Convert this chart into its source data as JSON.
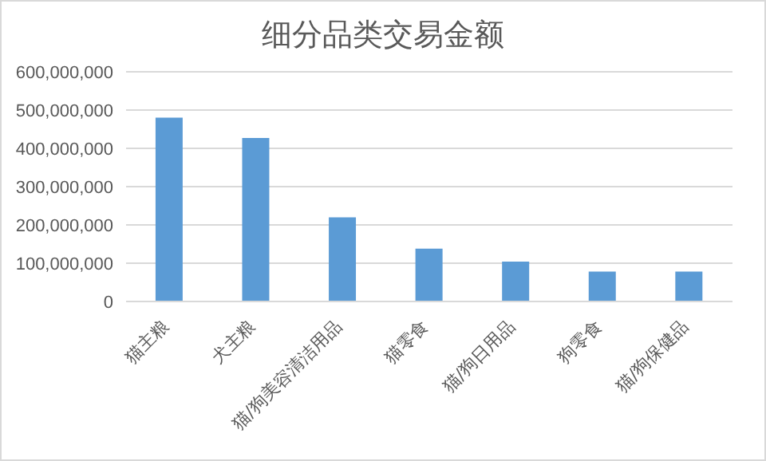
{
  "chart_data": {
    "type": "bar",
    "title": "细分品类交易金额",
    "categories": [
      "猫主粮",
      "犬主粮",
      "猫/狗美容清洁用品",
      "猫零食",
      "猫/狗日用品",
      "狗零食",
      "猫/狗保健品"
    ],
    "values": [
      480000000,
      427000000,
      220000000,
      138000000,
      104000000,
      78000000,
      78000000
    ],
    "color": "#5b9bd5",
    "ylim": [
      0,
      600000000
    ],
    "yticks": [
      0,
      {
        "value": 100000000,
        "label": "100,000,000"
      },
      {
        "value": 200000000,
        "label": "200,000,000"
      },
      {
        "value": 300000000,
        "label": "300,000,000"
      },
      {
        "value": 400000000,
        "label": "400,000,000"
      },
      {
        "value": 500000000,
        "label": "500,000,000"
      },
      {
        "value": 600000000,
        "label": "600,000,000"
      }
    ],
    "grid": "y"
  }
}
